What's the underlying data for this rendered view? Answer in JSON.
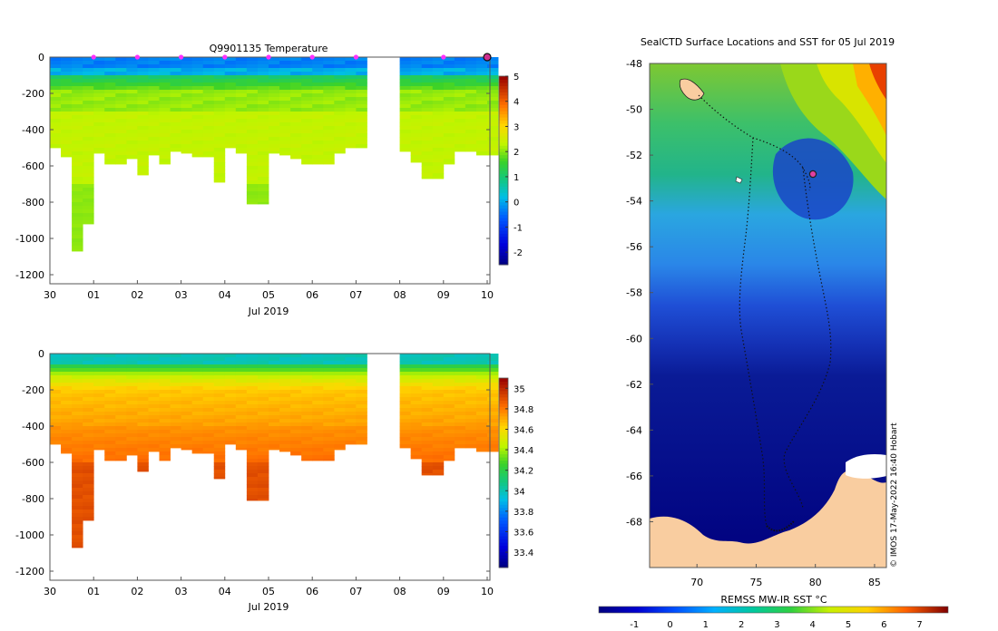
{
  "chart_data": [
    {
      "type": "heatmap",
      "title": "Q9901135  Temperature",
      "xlabel": "Jul 2019",
      "ylabel": "",
      "x_ticks": [
        "30",
        "01",
        "02",
        "03",
        "04",
        "05",
        "06",
        "07",
        "08",
        "09",
        "10"
      ],
      "x_range": [
        0,
        10
      ],
      "y_ticks": [
        0,
        -200,
        -400,
        -600,
        -800,
        -1000,
        -1200
      ],
      "ylim": [
        -1250,
        0
      ],
      "colorbar": {
        "ticks": [
          5,
          4,
          3,
          2,
          1,
          0,
          -1,
          -2
        ],
        "range": [
          -2.5,
          5.0
        ]
      },
      "variable": "temperature",
      "profiles_day": [
        0.0,
        0.25,
        0.5,
        0.75,
        1.0,
        1.25,
        1.5,
        1.75,
        2.0,
        2.25,
        2.5,
        2.75,
        3.0,
        3.25,
        3.5,
        3.75,
        4.0,
        4.25,
        4.5,
        4.75,
        5.0,
        5.25,
        5.5,
        5.75,
        6.0,
        6.25,
        6.5,
        6.75,
        7.0,
        8.0,
        8.25,
        8.5,
        8.75,
        9.0,
        9.25,
        9.5,
        9.75,
        10.0
      ],
      "profiles_maxdepth": [
        500,
        550,
        1070,
        920,
        530,
        590,
        590,
        560,
        650,
        540,
        590,
        520,
        530,
        550,
        550,
        690,
        500,
        530,
        810,
        810,
        530,
        540,
        560,
        590,
        590,
        590,
        530,
        500,
        500,
        520,
        580,
        670,
        670,
        590,
        520,
        520,
        540,
        540
      ],
      "markers_day": [
        1,
        2,
        3,
        4,
        5,
        6,
        7,
        9
      ],
      "last_marker_day": 10.0
    },
    {
      "type": "heatmap",
      "title": "",
      "xlabel": "Jul 2019",
      "ylabel": "",
      "x_ticks": [
        "30",
        "01",
        "02",
        "03",
        "04",
        "05",
        "06",
        "07",
        "08",
        "09",
        "10"
      ],
      "x_range": [
        0,
        10
      ],
      "y_ticks": [
        0,
        -200,
        -400,
        -600,
        -800,
        -1000,
        -1200
      ],
      "ylim": [
        -1250,
        0
      ],
      "colorbar": {
        "ticks": [
          35,
          34.8,
          34.6,
          34.4,
          34.2,
          34,
          33.8,
          33.6,
          33.4
        ],
        "range": [
          33.25,
          35.1
        ]
      },
      "variable": "salinity"
    },
    {
      "type": "heatmap",
      "title": "SealCTD Surface Locations and SST for 05 Jul 2019",
      "xlabel": "",
      "ylabel": "",
      "x_ticks": [
        70,
        75,
        80,
        85
      ],
      "x_range": [
        66,
        86
      ],
      "y_ticks": [
        -48,
        -50,
        -52,
        -54,
        -56,
        -58,
        -60,
        -62,
        -64,
        -66,
        -68
      ],
      "ylim": [
        -70,
        -48
      ],
      "colorbar_label": "REMSS MW-IR SST °C",
      "colorbar": {
        "ticks": [
          -1,
          0,
          1,
          2,
          3,
          4,
          5,
          6,
          7
        ],
        "range": [
          -2,
          7.8
        ]
      },
      "annotation": "© IMOS 17-May-2022 16:40 Hobart",
      "highlight_location": [
        79.8,
        -52.8
      ]
    }
  ]
}
